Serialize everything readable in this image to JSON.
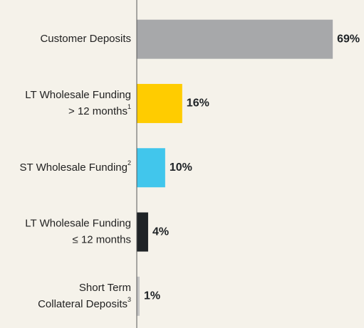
{
  "chart_data": {
    "type": "bar",
    "orientation": "horizontal",
    "categories": [
      {
        "lines": [
          "Customer Deposits"
        ]
      },
      {
        "lines": [
          "LT Wholesale Funding",
          "> 12 months"
        ],
        "note": "1"
      },
      {
        "lines": [
          "ST Wholesale Funding"
        ],
        "note": "2"
      },
      {
        "lines": [
          "LT Wholesale Funding",
          "≤ 12 months"
        ]
      },
      {
        "lines": [
          "Short Term",
          "Collateral Deposits"
        ],
        "note": "3"
      }
    ],
    "values": [
      69,
      16,
      10,
      4,
      1
    ],
    "value_labels": [
      "69%",
      "16%",
      "10%",
      "4%",
      "1%"
    ],
    "colors": [
      "#a7a8aa",
      "#ffcc00",
      "#41c6ec",
      "#1f2326",
      "#c4c4c4"
    ],
    "xlim": [
      0,
      80
    ]
  }
}
